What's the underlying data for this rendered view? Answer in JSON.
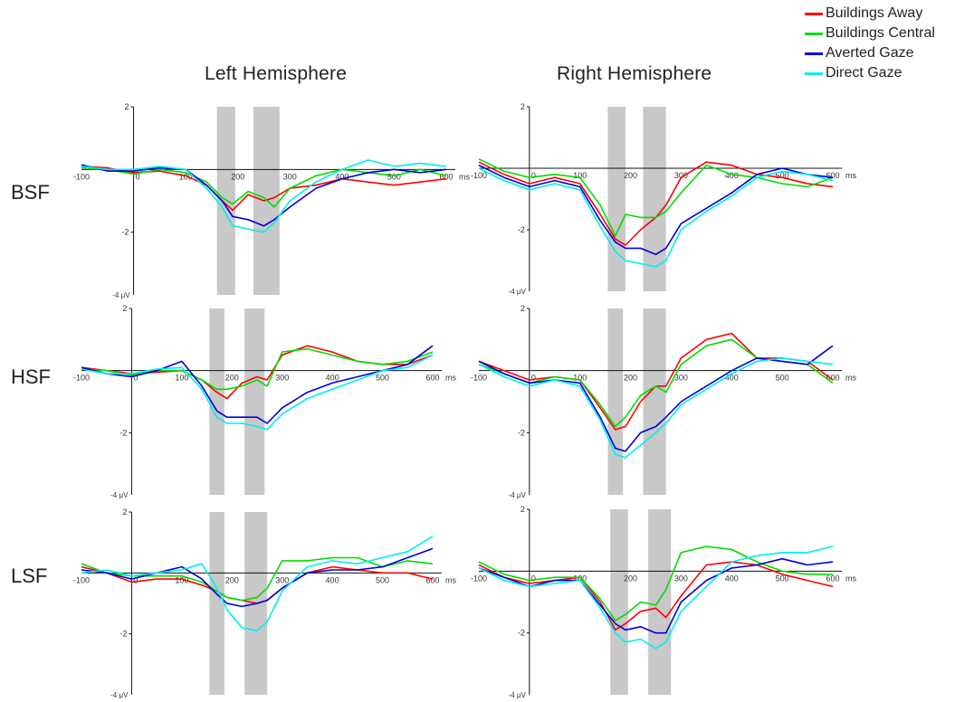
{
  "figure": {
    "column_titles": [
      "Left Hemisphere",
      "Right Hemisphere"
    ],
    "row_labels": [
      "BSF",
      "HSF",
      "LSF"
    ]
  },
  "legend": [
    {
      "label": "Buildings Away",
      "color": "#ff0000"
    },
    {
      "label": "Buildings Central",
      "color": "#00dd00"
    },
    {
      "label": "Averted Gaze",
      "color": "#0000dd"
    },
    {
      "label": "Direct Gaze",
      "color": "#00eeee"
    }
  ],
  "axis_labels": {
    "x_unit": "ms",
    "y_unit": "-4 μV"
  },
  "chart_data": [
    {
      "type": "line",
      "row": "BSF",
      "hemisphere": "Left Hemisphere",
      "x": [
        -100,
        -50,
        0,
        50,
        100,
        140,
        170,
        190,
        220,
        250,
        270,
        300,
        350,
        400,
        450,
        500,
        550,
        600
      ],
      "xlim": [
        -100,
        600
      ],
      "ylim": [
        -4,
        2
      ],
      "xticks": [
        -100,
        0,
        100,
        200,
        300,
        400,
        500,
        600
      ],
      "yticks": [
        2,
        -2
      ],
      "shaded_windows": [
        [
          160,
          195
        ],
        [
          230,
          280
        ]
      ],
      "series": [
        {
          "name": "Buildings Away",
          "color": "#ff0000",
          "values": [
            0.1,
            0.05,
            -0.1,
            -0.05,
            -0.2,
            -0.5,
            -1.0,
            -1.3,
            -0.8,
            -1.0,
            -0.9,
            -0.6,
            -0.5,
            -0.3,
            -0.4,
            -0.5,
            -0.4,
            -0.3
          ]
        },
        {
          "name": "Buildings Central",
          "color": "#00dd00",
          "values": [
            0.05,
            0.0,
            -0.15,
            0.0,
            -0.1,
            -0.4,
            -0.9,
            -1.1,
            -0.7,
            -0.9,
            -1.2,
            -0.6,
            -0.2,
            0.0,
            -0.1,
            -0.2,
            0.0,
            -0.2
          ]
        },
        {
          "name": "Averted Gaze",
          "color": "#0000dd",
          "values": [
            0.15,
            -0.05,
            -0.05,
            0.05,
            0.0,
            -0.5,
            -1.0,
            -1.5,
            -1.6,
            -1.8,
            -1.6,
            -1.2,
            -0.6,
            -0.3,
            -0.1,
            0.0,
            -0.1,
            0.0
          ]
        },
        {
          "name": "Direct Gaze",
          "color": "#00eeee",
          "values": [
            0.1,
            0.0,
            0.0,
            0.1,
            0.0,
            -0.6,
            -1.2,
            -1.8,
            -1.9,
            -2.0,
            -1.7,
            -1.0,
            -0.4,
            0.0,
            0.3,
            0.1,
            0.2,
            0.1
          ]
        }
      ]
    },
    {
      "type": "line",
      "row": "BSF",
      "hemisphere": "Right Hemisphere",
      "x": [
        -100,
        -50,
        0,
        50,
        100,
        140,
        170,
        190,
        220,
        250,
        270,
        300,
        350,
        400,
        450,
        500,
        550,
        600
      ],
      "xlim": [
        -100,
        600
      ],
      "ylim": [
        -4,
        2
      ],
      "xticks": [
        -100,
        0,
        100,
        200,
        300,
        400,
        500,
        600
      ],
      "yticks": [
        2,
        -2
      ],
      "shaded_windows": [
        [
          155,
          190
        ],
        [
          225,
          270
        ]
      ],
      "series": [
        {
          "name": "Buildings Away",
          "color": "#ff0000",
          "values": [
            0.2,
            -0.2,
            -0.5,
            -0.3,
            -0.5,
            -1.5,
            -2.3,
            -2.5,
            -2.0,
            -1.6,
            -1.2,
            -0.3,
            0.2,
            0.1,
            -0.2,
            -0.3,
            -0.5,
            -0.6
          ]
        },
        {
          "name": "Buildings Central",
          "color": "#00dd00",
          "values": [
            0.3,
            -0.1,
            -0.3,
            -0.2,
            -0.3,
            -1.2,
            -2.2,
            -1.5,
            -1.6,
            -1.6,
            -1.4,
            -0.8,
            0.1,
            -0.2,
            -0.3,
            -0.5,
            -0.6,
            -0.3
          ]
        },
        {
          "name": "Averted Gaze",
          "color": "#0000dd",
          "values": [
            0.1,
            -0.3,
            -0.6,
            -0.4,
            -0.6,
            -1.7,
            -2.4,
            -2.6,
            -2.6,
            -2.8,
            -2.6,
            -1.8,
            -1.3,
            -0.8,
            -0.2,
            0.0,
            -0.2,
            -0.3
          ]
        },
        {
          "name": "Direct Gaze",
          "color": "#00eeee",
          "values": [
            0.0,
            -0.4,
            -0.7,
            -0.5,
            -0.7,
            -1.9,
            -2.7,
            -3.0,
            -3.1,
            -3.2,
            -3.0,
            -2.0,
            -1.4,
            -0.9,
            -0.3,
            -0.1,
            -0.2,
            -0.4
          ]
        }
      ]
    },
    {
      "type": "line",
      "row": "HSF",
      "hemisphere": "Left Hemisphere",
      "x": [
        -100,
        -50,
        0,
        50,
        100,
        140,
        170,
        190,
        220,
        250,
        270,
        300,
        350,
        400,
        450,
        500,
        550,
        600
      ],
      "xlim": [
        -100,
        600
      ],
      "ylim": [
        -4,
        2
      ],
      "xticks": [
        -100,
        0,
        100,
        200,
        300,
        400,
        500,
        600
      ],
      "yticks": [
        2,
        -2
      ],
      "shaded_windows": [
        [
          155,
          185
        ],
        [
          225,
          265
        ]
      ],
      "series": [
        {
          "name": "Buildings Away",
          "color": "#ff0000",
          "values": [
            0.1,
            0.0,
            -0.1,
            -0.05,
            0.0,
            -0.3,
            -0.7,
            -0.9,
            -0.4,
            -0.2,
            -0.3,
            0.5,
            0.8,
            0.6,
            0.3,
            0.2,
            0.2,
            0.5
          ]
        },
        {
          "name": "Buildings Central",
          "color": "#00dd00",
          "values": [
            0.05,
            0.0,
            -0.15,
            0.0,
            0.0,
            -0.3,
            -0.6,
            -0.6,
            -0.5,
            -0.3,
            -0.5,
            0.6,
            0.7,
            0.5,
            0.3,
            0.2,
            0.3,
            0.6
          ]
        },
        {
          "name": "Averted Gaze",
          "color": "#0000dd",
          "values": [
            0.1,
            -0.1,
            -0.2,
            0.0,
            0.3,
            -0.5,
            -1.3,
            -1.5,
            -1.5,
            -1.5,
            -1.7,
            -1.2,
            -0.7,
            -0.4,
            -0.2,
            0.0,
            0.2,
            0.8
          ]
        },
        {
          "name": "Direct Gaze",
          "color": "#00eeee",
          "values": [
            0.05,
            -0.1,
            -0.1,
            0.05,
            0.1,
            -0.6,
            -1.5,
            -1.7,
            -1.7,
            -1.8,
            -1.9,
            -1.4,
            -0.9,
            -0.6,
            -0.3,
            0.0,
            0.1,
            0.5
          ]
        }
      ]
    },
    {
      "type": "line",
      "row": "HSF",
      "hemisphere": "Right Hemisphere",
      "x": [
        -100,
        -50,
        0,
        50,
        100,
        140,
        170,
        190,
        220,
        250,
        270,
        300,
        350,
        400,
        450,
        500,
        550,
        600
      ],
      "xlim": [
        -100,
        600
      ],
      "ylim": [
        -4,
        2
      ],
      "xticks": [
        -100,
        0,
        100,
        200,
        300,
        400,
        500,
        600
      ],
      "yticks": [
        2,
        -2
      ],
      "shaded_windows": [
        [
          155,
          185
        ],
        [
          225,
          270
        ]
      ],
      "series": [
        {
          "name": "Buildings Away",
          "color": "#ff0000",
          "values": [
            0.3,
            0.0,
            -0.3,
            -0.2,
            -0.3,
            -1.2,
            -1.9,
            -1.8,
            -1.0,
            -0.5,
            -0.5,
            0.4,
            1.0,
            1.2,
            0.4,
            0.4,
            0.3,
            -0.3
          ]
        },
        {
          "name": "Buildings Central",
          "color": "#00dd00",
          "values": [
            0.2,
            -0.1,
            -0.4,
            -0.2,
            -0.3,
            -1.1,
            -1.8,
            -1.5,
            -0.8,
            -0.5,
            -0.7,
            0.2,
            0.8,
            1.0,
            0.4,
            0.3,
            0.2,
            -0.4
          ]
        },
        {
          "name": "Averted Gaze",
          "color": "#0000dd",
          "values": [
            0.3,
            -0.1,
            -0.4,
            -0.3,
            -0.4,
            -1.5,
            -2.5,
            -2.6,
            -2.0,
            -1.8,
            -1.5,
            -1.0,
            -0.5,
            0.0,
            0.4,
            0.3,
            0.2,
            0.8
          ]
        },
        {
          "name": "Direct Gaze",
          "color": "#00eeee",
          "values": [
            0.2,
            -0.2,
            -0.5,
            -0.3,
            -0.5,
            -1.6,
            -2.7,
            -2.8,
            -2.4,
            -2.0,
            -1.7,
            -1.1,
            -0.6,
            -0.1,
            0.3,
            0.4,
            0.3,
            0.2
          ]
        }
      ]
    },
    {
      "type": "line",
      "row": "LSF",
      "hemisphere": "Left Hemisphere",
      "x": [
        -100,
        -50,
        0,
        50,
        100,
        140,
        170,
        190,
        220,
        250,
        270,
        300,
        350,
        400,
        450,
        500,
        550,
        600
      ],
      "xlim": [
        -100,
        600
      ],
      "ylim": [
        -4,
        2
      ],
      "xticks": [
        -100,
        0,
        100,
        200,
        300,
        400,
        500,
        600
      ],
      "yticks": [
        2,
        -2
      ],
      "shaded_windows": [
        [
          155,
          185
        ],
        [
          225,
          270
        ]
      ],
      "series": [
        {
          "name": "Buildings Away",
          "color": "#ff0000",
          "values": [
            0.2,
            0.0,
            -0.3,
            -0.2,
            -0.2,
            -0.4,
            -0.6,
            -0.8,
            -0.9,
            -1.0,
            -0.9,
            -0.5,
            0.0,
            0.2,
            0.1,
            0.0,
            0.0,
            -0.2
          ]
        },
        {
          "name": "Buildings Central",
          "color": "#00dd00",
          "values": [
            0.3,
            0.0,
            -0.1,
            -0.1,
            -0.1,
            -0.3,
            -0.6,
            -0.8,
            -0.9,
            -0.8,
            -0.5,
            0.4,
            0.4,
            0.5,
            0.5,
            0.2,
            0.4,
            0.3
          ]
        },
        {
          "name": "Averted Gaze",
          "color": "#0000dd",
          "values": [
            0.1,
            0.0,
            -0.2,
            0.0,
            0.2,
            -0.2,
            -0.7,
            -1.0,
            -1.1,
            -1.0,
            -0.9,
            -0.5,
            0.0,
            0.1,
            0.1,
            0.2,
            0.5,
            0.8
          ]
        },
        {
          "name": "Direct Gaze",
          "color": "#00eeee",
          "values": [
            0.0,
            0.1,
            -0.1,
            0.0,
            0.1,
            0.3,
            -0.5,
            -1.2,
            -1.8,
            -1.9,
            -1.6,
            -0.6,
            0.2,
            0.4,
            0.3,
            0.5,
            0.7,
            1.2
          ]
        }
      ]
    },
    {
      "type": "line",
      "row": "LSF",
      "hemisphere": "Right Hemisphere",
      "x": [
        -100,
        -50,
        0,
        50,
        100,
        140,
        170,
        190,
        220,
        250,
        270,
        300,
        350,
        400,
        450,
        500,
        550,
        600
      ],
      "xlim": [
        -100,
        600
      ],
      "ylim": [
        -4,
        2
      ],
      "xticks": [
        -100,
        0,
        100,
        200,
        300,
        400,
        500,
        600
      ],
      "yticks": [
        2,
        -2
      ],
      "shaded_windows": [
        [
          160,
          195
        ],
        [
          235,
          280
        ]
      ],
      "series": [
        {
          "name": "Buildings Away",
          "color": "#ff0000",
          "values": [
            0.2,
            -0.2,
            -0.4,
            -0.3,
            -0.2,
            -1.0,
            -1.9,
            -1.7,
            -1.3,
            -1.2,
            -1.5,
            -0.8,
            0.2,
            0.3,
            0.2,
            -0.1,
            -0.3,
            -0.5
          ]
        },
        {
          "name": "Buildings Central",
          "color": "#00dd00",
          "values": [
            0.3,
            -0.1,
            -0.3,
            -0.2,
            -0.2,
            -0.9,
            -1.6,
            -1.4,
            -1.0,
            -1.1,
            -0.6,
            0.6,
            0.8,
            0.7,
            0.3,
            0.0,
            -0.1,
            -0.1
          ]
        },
        {
          "name": "Averted Gaze",
          "color": "#0000dd",
          "values": [
            0.1,
            -0.2,
            -0.5,
            -0.3,
            -0.3,
            -1.1,
            -1.7,
            -1.9,
            -1.8,
            -2.0,
            -2.0,
            -1.0,
            -0.3,
            0.1,
            0.2,
            0.4,
            0.2,
            0.3
          ]
        },
        {
          "name": "Direct Gaze",
          "color": "#00eeee",
          "values": [
            0.1,
            -0.3,
            -0.5,
            -0.4,
            -0.3,
            -1.2,
            -2.0,
            -2.3,
            -2.2,
            -2.5,
            -2.3,
            -1.3,
            -0.5,
            0.3,
            0.5,
            0.6,
            0.6,
            0.8
          ]
        }
      ]
    }
  ]
}
